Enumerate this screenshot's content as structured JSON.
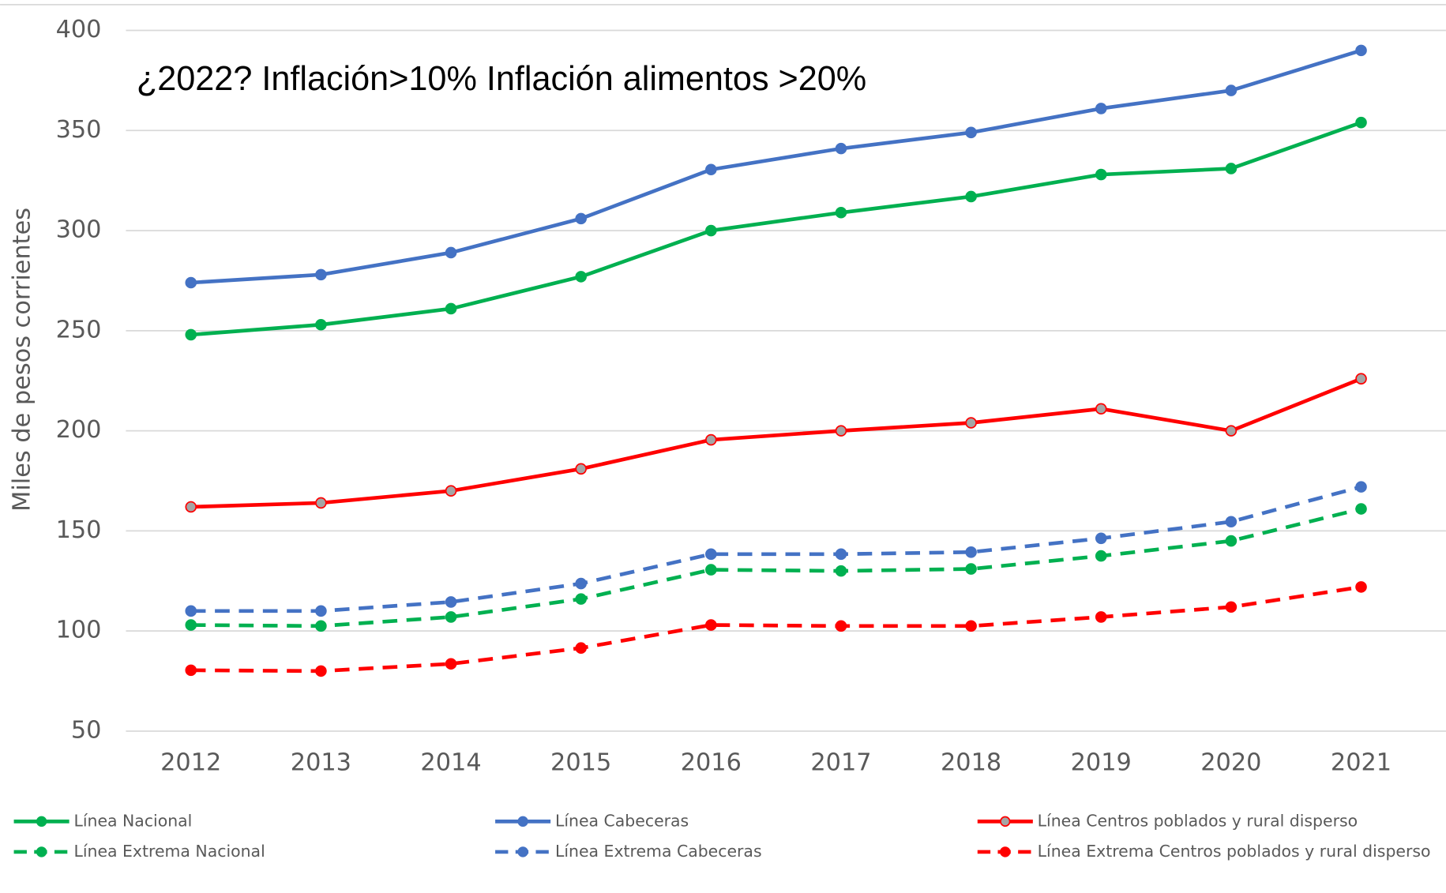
{
  "chart_data": {
    "type": "line",
    "annotation": "¿2022? Inflación>10% Inflación alimentos >20%",
    "y_label": "Miles de pesos corrientes",
    "categories": [
      "2012",
      "2013",
      "2014",
      "2015",
      "2016",
      "2017",
      "2018",
      "2019",
      "2020",
      "2021"
    ],
    "ylim": [
      50,
      400
    ],
    "yticks": [
      50,
      100,
      150,
      200,
      250,
      300,
      350,
      400
    ],
    "grid": true,
    "legend": "bottom",
    "series": [
      {
        "name": "Línea Nacional",
        "color": "#00b050",
        "dashed": false,
        "marker_fill": "#00b050",
        "values": [
          248,
          253,
          261,
          277,
          300,
          309,
          317,
          328,
          331,
          354
        ]
      },
      {
        "name": "Línea Cabeceras",
        "color": "#4472c4",
        "dashed": false,
        "marker_fill": "#4472c4",
        "values": [
          274,
          278,
          289,
          306,
          330.5,
          341,
          349,
          361,
          370,
          390
        ]
      },
      {
        "name": "Línea Centros poblados y rural disperso",
        "color": "#ff0000",
        "dashed": false,
        "marker_fill": "#a5a5a5",
        "values": [
          162,
          164,
          170,
          181,
          195.5,
          200,
          204,
          211,
          200,
          226
        ]
      },
      {
        "name": "Línea Extrema Nacional",
        "color": "#00b050",
        "dashed": true,
        "marker_fill": "#00b050",
        "values": [
          103,
          102.5,
          107,
          116,
          130.6,
          130,
          131,
          137.5,
          145,
          161
        ]
      },
      {
        "name": "Línea Extrema Cabeceras",
        "color": "#4472c4",
        "dashed": true,
        "marker_fill": "#4472c4",
        "values": [
          110,
          110,
          114.5,
          123.7,
          138.4,
          138.4,
          139.4,
          146.3,
          154.6,
          172
        ]
      },
      {
        "name": "Línea Extrema Centros poblados y rural disperso",
        "color": "#ff0000",
        "dashed": true,
        "marker_fill": "#ff0000",
        "values": [
          80.4,
          80,
          83.6,
          91.5,
          103,
          102.5,
          102.5,
          107,
          112,
          122
        ]
      }
    ]
  }
}
